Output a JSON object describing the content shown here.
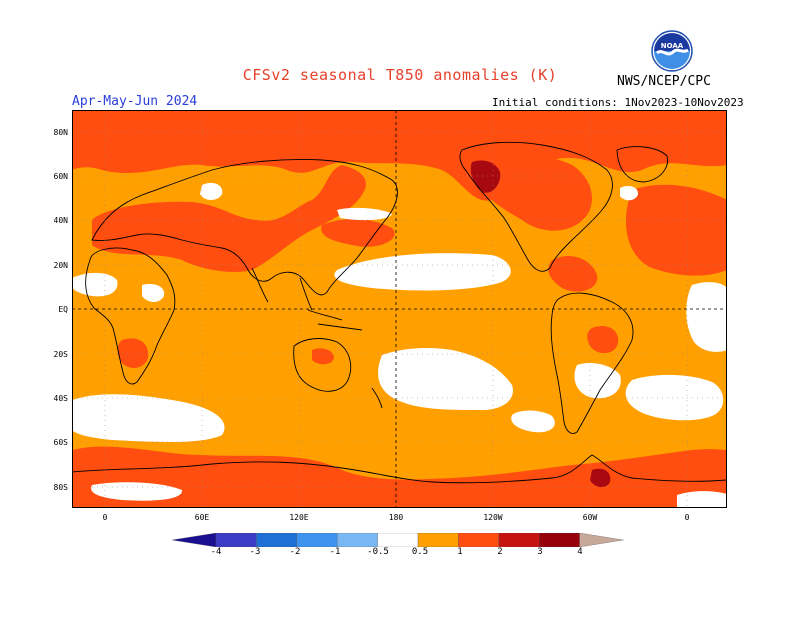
{
  "header": {
    "title": "CFSv2 seasonal T850 anomalies (K)",
    "period": "Apr-May-Jun 2024",
    "agency": "NWS/NCEP/CPC",
    "initial_conditions": "Initial conditions: 1Nov2023-10Nov2023",
    "logo_text": "NOAA"
  },
  "map": {
    "projection": "equirectangular",
    "lat_labels": [
      "80N",
      "60N",
      "40N",
      "20N",
      "EQ",
      "20S",
      "40S",
      "60S",
      "80S"
    ],
    "lon_labels": [
      "0",
      "60E",
      "120E",
      "180",
      "120W",
      "60W",
      "0"
    ],
    "reference_lines": [
      "Equator (dashed)",
      "180 meridian (dashed)"
    ]
  },
  "legend": {
    "tick_labels": [
      "-4",
      "-3",
      "-2",
      "-1",
      "-0.5",
      "0.5",
      "1",
      "2",
      "3",
      "4"
    ],
    "bins": [
      {
        "range": "< -4",
        "color": "#1a0f8f"
      },
      {
        "range": "-4 to -3",
        "color": "#3b3bc8"
      },
      {
        "range": "-3 to -2",
        "color": "#1f6fd6"
      },
      {
        "range": "-2 to -1",
        "color": "#3f93ee"
      },
      {
        "range": "-1 to -0.5",
        "color": "#79b7f2"
      },
      {
        "range": "-0.5 to 0.5",
        "color": "#ffffff"
      },
      {
        "range": "0.5 to 1",
        "color": "#ffa000"
      },
      {
        "range": "1 to 2",
        "color": "#ff4e10"
      },
      {
        "range": "2 to 3",
        "color": "#c81410"
      },
      {
        "range": "3 to 4",
        "color": "#96000a"
      },
      {
        "range": "> 4",
        "color": "#c8a898"
      }
    ]
  },
  "colors": {
    "background_anomaly": "#ffa000",
    "strong_warm": "#ff4e10",
    "extreme_warm": "#a80810",
    "near_normal": "#ffffff"
  }
}
